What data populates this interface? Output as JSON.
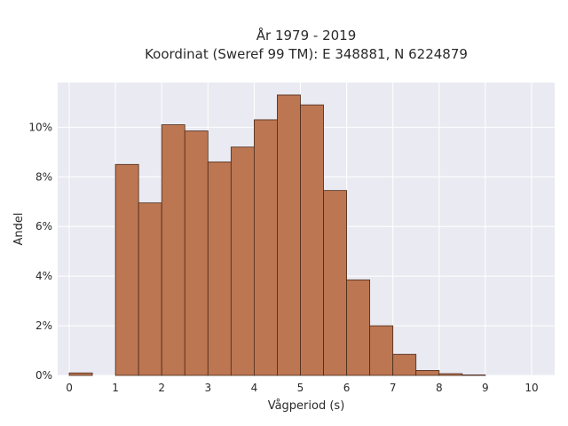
{
  "chart_data": {
    "type": "bar",
    "title": "År 1979 - 2019",
    "subtitle": "Koordinat (Sweref 99 TM): E 348881, N 6224879",
    "xlabel": "Vågperiod (s)",
    "ylabel": "Andel",
    "bin_width": 0.5,
    "bins": [
      {
        "x0": 0.0,
        "value": 0.1
      },
      {
        "x0": 0.5,
        "value": 0.0
      },
      {
        "x0": 1.0,
        "value": 8.5
      },
      {
        "x0": 1.5,
        "value": 6.95
      },
      {
        "x0": 2.0,
        "value": 10.1
      },
      {
        "x0": 2.5,
        "value": 9.85
      },
      {
        "x0": 3.0,
        "value": 8.6
      },
      {
        "x0": 3.5,
        "value": 9.2
      },
      {
        "x0": 4.0,
        "value": 10.3
      },
      {
        "x0": 4.5,
        "value": 11.3
      },
      {
        "x0": 5.0,
        "value": 10.9
      },
      {
        "x0": 5.5,
        "value": 7.45
      },
      {
        "x0": 6.0,
        "value": 3.85
      },
      {
        "x0": 6.5,
        "value": 2.0
      },
      {
        "x0": 7.0,
        "value": 0.85
      },
      {
        "x0": 7.5,
        "value": 0.2
      },
      {
        "x0": 8.0,
        "value": 0.07
      },
      {
        "x0": 8.5,
        "value": 0.02
      }
    ],
    "xticks": [
      0,
      1,
      2,
      3,
      4,
      5,
      6,
      7,
      8,
      9,
      10
    ],
    "xtick_labels": [
      "0",
      "1",
      "2",
      "3",
      "4",
      "5",
      "6",
      "7",
      "8",
      "9",
      "10"
    ],
    "yticks": [
      0,
      2,
      4,
      6,
      8,
      10
    ],
    "ytick_labels": [
      "0%",
      "2%",
      "4%",
      "6%",
      "8%",
      "10%"
    ],
    "xlim": [
      -0.25,
      10.5
    ],
    "ylim": [
      0,
      11.8
    ],
    "grid": true,
    "colors": {
      "bar_fill": "#bc7652",
      "bar_edge": "#4a2a1a",
      "plot_background": "#eaeaf2",
      "grid": "#ffffff"
    }
  }
}
